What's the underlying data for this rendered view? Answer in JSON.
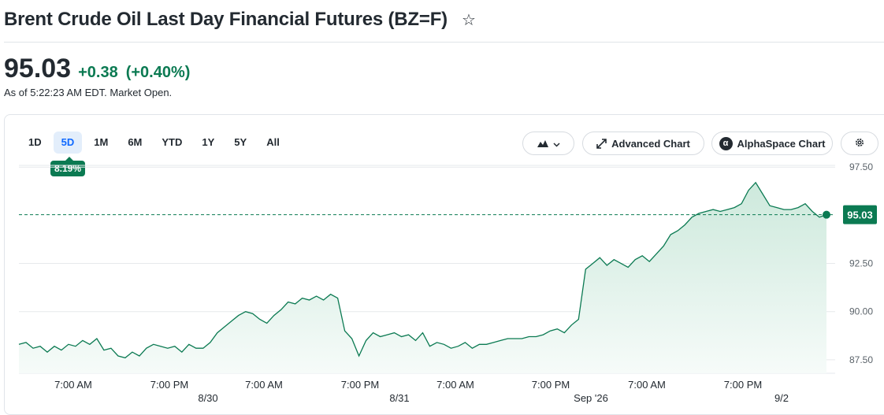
{
  "header": {
    "title": "Brent Crude Oil Last Day Financial Futures (BZ=F)",
    "star_icon": "star-outline-icon"
  },
  "quote": {
    "price": "95.03",
    "change": "+0.38",
    "change_pct": "(+0.40%)",
    "as_of": "As of 5:22:23 AM EDT. Market Open."
  },
  "ranges": [
    {
      "label": "1D"
    },
    {
      "label": "5D"
    },
    {
      "label": "1M"
    },
    {
      "label": "6M"
    },
    {
      "label": "YTD"
    },
    {
      "label": "1Y"
    },
    {
      "label": "5Y"
    },
    {
      "label": "All"
    }
  ],
  "active_range_index": 1,
  "range_badge": "8.19%",
  "toolbar": {
    "chart_type_icon": "mountain-chart-icon",
    "chevron_icon": "chevron-down-icon",
    "advanced_icon": "expand-arrows-icon",
    "advanced_label": "Advanced Chart",
    "alpha_icon": "alphaspace-logo-icon",
    "alpha_label": "AlphaSpace Chart",
    "gear_icon": "gear-icon"
  },
  "colors": {
    "up": "#0b7a52",
    "fill_top": "#cde9dc",
    "fill_bottom": "#f6fbf9",
    "grid": "#e6e9ec",
    "volume": "#dfe2e5",
    "active_range_bg": "#e3eefb",
    "active_range_text": "#0f69ff"
  },
  "chart_data": {
    "type": "area",
    "title": "",
    "xlabel": "",
    "ylabel": "",
    "ylim": [
      86.8,
      98.0
    ],
    "y_ticks": [
      "97.50",
      "92.50",
      "90.00",
      "87.50"
    ],
    "x_ticks": [
      "7:00 AM",
      "7:00 PM",
      "7:00 AM",
      "7:00 PM",
      "7:00 AM",
      "7:00 PM",
      "7:00 AM",
      "7:00 PM"
    ],
    "date_ticks": [
      "8/30",
      "8/31",
      "Sep '26",
      "9/2"
    ],
    "current_price_label": "95.03",
    "reference_line": 95.03,
    "series": [
      {
        "values": [
          88.3,
          88.4,
          88.1,
          88.2,
          87.9,
          88.2,
          88.0,
          88.3,
          88.2,
          88.5,
          88.3,
          88.6,
          88.0,
          88.1,
          87.7,
          87.6,
          87.9,
          87.7,
          88.1,
          88.3,
          88.2,
          88.1,
          88.2,
          87.9,
          88.3,
          88.1,
          88.1,
          88.4,
          88.9,
          89.2,
          89.5,
          89.8,
          90.0,
          89.9,
          89.6,
          89.4,
          89.8,
          90.1,
          90.5,
          90.4,
          90.7,
          90.6,
          90.8,
          90.6,
          90.9,
          90.7,
          89.0,
          88.6,
          87.7,
          88.5,
          88.9,
          88.7,
          88.8,
          88.9,
          88.7,
          88.8,
          88.5,
          88.9,
          88.2,
          88.4,
          88.3,
          88.1,
          88.2,
          88.4,
          88.1,
          88.3,
          88.3,
          88.4,
          88.5,
          88.6,
          88.6,
          88.6,
          88.7,
          88.7,
          88.8,
          89.0,
          89.1,
          88.9,
          89.3,
          89.6,
          92.2,
          92.5,
          92.8,
          92.4,
          92.7,
          92.5,
          92.3,
          92.7,
          92.9,
          92.6,
          93.0,
          93.4,
          94.0,
          94.2,
          94.5,
          94.9,
          95.1,
          95.2,
          95.3,
          95.2,
          95.3,
          95.4,
          95.6,
          96.3,
          96.7,
          96.1,
          95.5,
          95.4,
          95.3,
          95.3,
          95.4,
          95.6,
          95.2,
          94.9,
          95.03
        ]
      }
    ]
  }
}
